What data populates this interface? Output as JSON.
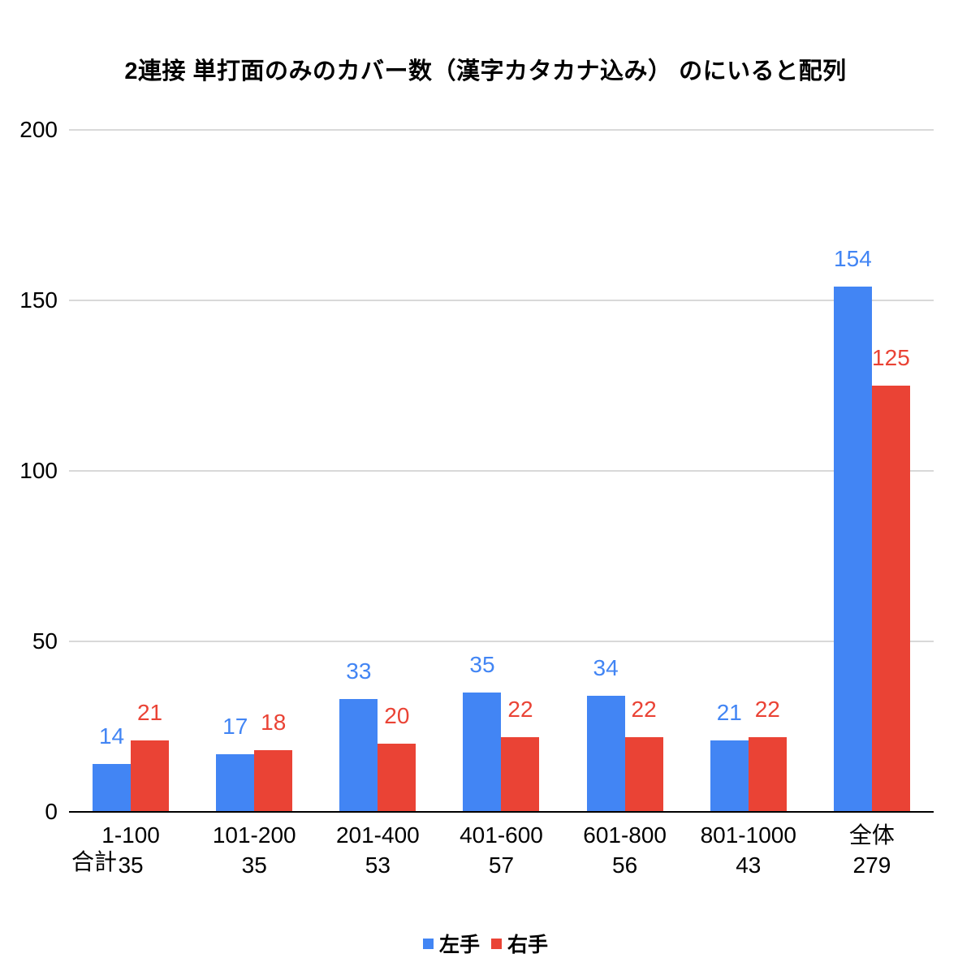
{
  "title": "2連接 単打面のみのカバー数（漢字カタカナ込み） のにいると配列",
  "chart_data": {
    "type": "bar",
    "title": "2連接 単打面のみのカバー数（漢字カタカナ込み） のにいると配列",
    "categories": [
      "1-100",
      "101-200",
      "201-400",
      "401-600",
      "601-800",
      "801-1000",
      "全体"
    ],
    "series": [
      {
        "name": "左手",
        "color": "#4285F4",
        "values": [
          14,
          17,
          33,
          35,
          34,
          21,
          154
        ]
      },
      {
        "name": "右手",
        "color": "#EA4335",
        "values": [
          21,
          18,
          20,
          22,
          22,
          22,
          125
        ]
      }
    ],
    "totals_label": "合計",
    "totals": [
      35,
      35,
      53,
      57,
      56,
      43,
      279
    ],
    "xlabel": "",
    "ylabel": "",
    "ylim": [
      0,
      200
    ],
    "yticks": [
      0,
      50,
      100,
      150,
      200
    ],
    "grid": true,
    "gridline_color": "#d9d9d9",
    "axis_color": "#000000",
    "legend_position": "bottom"
  }
}
